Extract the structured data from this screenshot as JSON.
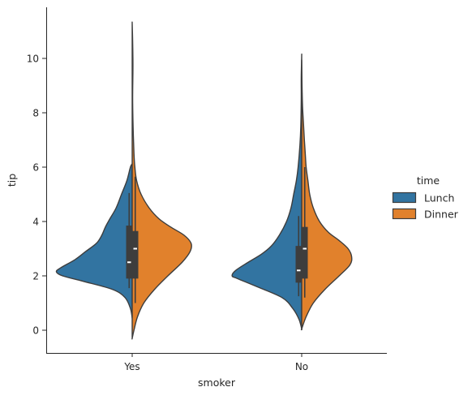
{
  "chart_data": {
    "type": "violin",
    "split": true,
    "xlabel": "smoker",
    "ylabel": "tip",
    "categories": [
      "Yes",
      "No"
    ],
    "ylim": [
      -0.8,
      11.9
    ],
    "yticks": [
      0,
      2,
      4,
      6,
      8,
      10
    ],
    "legend": {
      "title": "time",
      "placement": "center-right",
      "entries": [
        {
          "label": "Lunch",
          "color": "#3274a1"
        },
        {
          "label": "Dinner",
          "color": "#e1812c"
        }
      ]
    },
    "series": [
      {
        "name": "Lunch",
        "color": "#3274a1",
        "side": "left",
        "groups": [
          {
            "category": "Yes",
            "profile": [
              [
                0.45,
                0.0
              ],
              [
                0.8,
                0.02
              ],
              [
                1.2,
                0.08
              ],
              [
                1.5,
                0.22
              ],
              [
                1.8,
                0.55
              ],
              [
                2.0,
                0.78
              ],
              [
                2.15,
                0.85
              ],
              [
                2.3,
                0.8
              ],
              [
                2.6,
                0.64
              ],
              [
                2.9,
                0.52
              ],
              [
                3.2,
                0.4
              ],
              [
                3.5,
                0.34
              ],
              [
                3.8,
                0.3
              ],
              [
                4.1,
                0.25
              ],
              [
                4.5,
                0.18
              ],
              [
                5.0,
                0.12
              ],
              [
                5.5,
                0.06
              ],
              [
                6.0,
                0.02
              ],
              [
                6.12,
                0.0
              ]
            ],
            "box": {
              "q1": 1.9,
              "median": 2.5,
              "q3": 3.85,
              "whisker_low": 1.55,
              "whisker_high": 5.05
            }
          },
          {
            "category": "No",
            "profile": [
              [
                0.05,
                0.0
              ],
              [
                0.4,
                0.03
              ],
              [
                0.8,
                0.1
              ],
              [
                1.2,
                0.22
              ],
              [
                1.6,
                0.5
              ],
              [
                1.9,
                0.72
              ],
              [
                2.0,
                0.78
              ],
              [
                2.2,
                0.74
              ],
              [
                2.5,
                0.6
              ],
              [
                2.8,
                0.45
              ],
              [
                3.1,
                0.34
              ],
              [
                3.5,
                0.25
              ],
              [
                4.0,
                0.17
              ],
              [
                4.5,
                0.12
              ],
              [
                5.0,
                0.09
              ],
              [
                5.5,
                0.06
              ],
              [
                6.0,
                0.04
              ],
              [
                6.8,
                0.02
              ],
              [
                7.5,
                0.01
              ],
              [
                8.5,
                0.005
              ],
              [
                9.3,
                0.005
              ],
              [
                10.1,
                0.0
              ]
            ],
            "box": {
              "q1": 1.75,
              "median": 2.2,
              "q3": 3.1,
              "whisker_low": 1.25,
              "whisker_high": 4.2
            }
          }
        ]
      },
      {
        "name": "Dinner",
        "color": "#e1812c",
        "side": "right",
        "groups": [
          {
            "category": "Yes",
            "profile": [
              [
                -0.3,
                0.0
              ],
              [
                0.0,
                0.02
              ],
              [
                0.5,
                0.06
              ],
              [
                1.0,
                0.13
              ],
              [
                1.5,
                0.25
              ],
              [
                2.0,
                0.4
              ],
              [
                2.5,
                0.56
              ],
              [
                2.9,
                0.65
              ],
              [
                3.2,
                0.66
              ],
              [
                3.5,
                0.58
              ],
              [
                3.8,
                0.43
              ],
              [
                4.1,
                0.3
              ],
              [
                4.5,
                0.19
              ],
              [
                5.0,
                0.1
              ],
              [
                5.5,
                0.05
              ],
              [
                6.0,
                0.03
              ],
              [
                6.5,
                0.02
              ],
              [
                7.5,
                0.01
              ],
              [
                8.5,
                0.005
              ],
              [
                9.5,
                0.008
              ],
              [
                10.0,
                0.008
              ],
              [
                10.8,
                0.004
              ],
              [
                11.3,
                0.0
              ]
            ],
            "box": {
              "q1": 1.9,
              "median": 3.0,
              "q3": 3.65,
              "whisker_low": 1.0,
              "whisker_high": 5.65
            }
          },
          {
            "category": "No",
            "profile": [
              [
                0.05,
                0.0
              ],
              [
                0.5,
                0.05
              ],
              [
                1.0,
                0.13
              ],
              [
                1.5,
                0.26
              ],
              [
                2.0,
                0.42
              ],
              [
                2.4,
                0.54
              ],
              [
                2.7,
                0.56
              ],
              [
                3.0,
                0.52
              ],
              [
                3.3,
                0.42
              ],
              [
                3.6,
                0.3
              ],
              [
                4.0,
                0.2
              ],
              [
                4.5,
                0.13
              ],
              [
                5.0,
                0.09
              ],
              [
                5.5,
                0.07
              ],
              [
                6.0,
                0.05
              ],
              [
                6.5,
                0.04
              ],
              [
                7.0,
                0.03
              ],
              [
                7.6,
                0.02
              ],
              [
                8.2,
                0.01
              ],
              [
                8.8,
                0.005
              ],
              [
                9.4,
                0.002
              ],
              [
                9.9,
                0.0
              ]
            ],
            "box": {
              "q1": 1.9,
              "median": 3.0,
              "q3": 3.8,
              "whisker_low": 1.2,
              "whisker_high": 6.0
            }
          }
        ]
      }
    ],
    "colors": {
      "outline": "#3d3d3d",
      "box": "#3d3d3d",
      "median": "#ffffff",
      "axis": "#262626"
    }
  }
}
